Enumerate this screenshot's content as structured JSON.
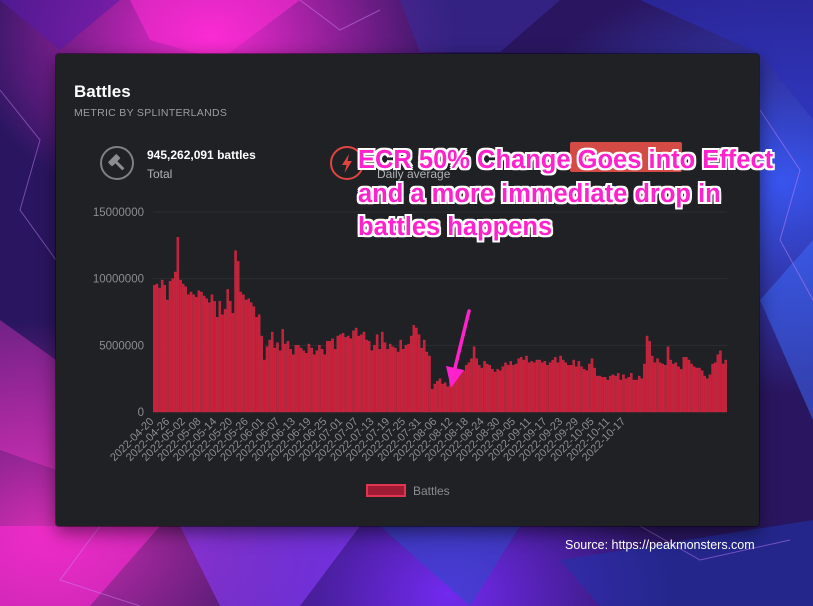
{
  "card": {
    "title": "Battles",
    "subtitle": "METRIC BY SPLINTERLANDS",
    "stats": [
      {
        "icon": "hammer-icon",
        "value": "945,262,091 battles",
        "label": "Total"
      },
      {
        "icon": "lightning-icon",
        "value": "",
        "label": "Daily average"
      }
    ]
  },
  "annotation": {
    "text": "ECR 50% Change Goes into Effect and a more immediate drop in battles happens",
    "color": "#ff22cc"
  },
  "source": "Source: https://peakmonsters.com",
  "colors": {
    "bar_fill": "#c8203a",
    "bar_stroke": "#e0344f",
    "card_bg": "#1f2124",
    "annotation": "#ff22cc"
  },
  "chart_data": {
    "type": "bar",
    "ylim": [
      0,
      15000000
    ],
    "yticks": [
      "0",
      "5000000",
      "10000000",
      "15000000"
    ],
    "xtick_labels": [
      "2022-04-20",
      "2022-04-26",
      "2022-05-02",
      "2022-05-08",
      "2022-05-14",
      "2022-05-20",
      "2022-05-26",
      "2022-06-01",
      "2022-06-07",
      "2022-06-13",
      "2022-06-19",
      "2022-06-25",
      "2022-07-01",
      "2022-07-07",
      "2022-07-13",
      "2022-07-19",
      "2022-07-25",
      "2022-07-31",
      "2022-08-06",
      "2022-08-12",
      "2022-08-18",
      "2022-08-24",
      "2022-08-30",
      "2022-09-05",
      "2022-09-11",
      "2022-09-17",
      "2022-09-23",
      "2022-09-29",
      "2022-10-05",
      "2022-10-11",
      "2022-10-17"
    ],
    "start_date": "2022-04-20",
    "series": [
      {
        "name": "Battles",
        "values": [
          9500000,
          9600000,
          9300000,
          9900000,
          9500000,
          8400000,
          9800000,
          10000000,
          10500000,
          13100000,
          9900000,
          9600000,
          9400000,
          8800000,
          9000000,
          8800000,
          8600000,
          9100000,
          9000000,
          8700000,
          8500000,
          8200000,
          8800000,
          8300000,
          7100000,
          8300000,
          7300000,
          7700000,
          9200000,
          8300000,
          7400000,
          12100000,
          11300000,
          9000000,
          8800000,
          8400000,
          8500000,
          8200000,
          7900000,
          7100000,
          7300000,
          5700000,
          3900000,
          4900000,
          5400000,
          6000000,
          4800000,
          5200000,
          4600000,
          6200000,
          5100000,
          5300000,
          4700000,
          4300000,
          5000000,
          5000000,
          4800000,
          4600000,
          4400000,
          5100000,
          4800000,
          4300000,
          4600000,
          5000000,
          4700000,
          4300000,
          5300000,
          5300000,
          5500000,
          4700000,
          5700000,
          5800000,
          5900000,
          5600000,
          5700000,
          5500000,
          6100000,
          6300000,
          5700000,
          5800000,
          6000000,
          5400000,
          5300000,
          4600000,
          5000000,
          5800000,
          4700000,
          6000000,
          5200000,
          4700000,
          5100000,
          4900000,
          4800000,
          4500000,
          5400000,
          4700000,
          5000000,
          5100000,
          5700000,
          6500000,
          6300000,
          5800000,
          4800000,
          5400000,
          4500000,
          4200000,
          1700000,
          2100000,
          2300000,
          2500000,
          2100000,
          2200000,
          1900000,
          2400000,
          2700000,
          2600000,
          2600000,
          3000000,
          3100000,
          3500000,
          3700000,
          4000000,
          4900000,
          4000000,
          3500000,
          3300000,
          3800000,
          3600000,
          3500000,
          3200000,
          3000000,
          3200000,
          3100000,
          3400000,
          3700000,
          3500000,
          3800000,
          3500000,
          3600000,
          4000000,
          4100000,
          3900000,
          4200000,
          3700000,
          3800000,
          3700000,
          3900000,
          3900000,
          3700000,
          3800000,
          3500000,
          3700000,
          3900000,
          4100000,
          3700000,
          4200000,
          3900000,
          3700000,
          3500000,
          3500000,
          3900000,
          3400000,
          3800000,
          3400000,
          3200000,
          3100000,
          3600000,
          4000000,
          3300000,
          2700000,
          2700000,
          2600000,
          2600000,
          2400000,
          2700000,
          2800000,
          2700000,
          2900000,
          2400000,
          2800000,
          2500000,
          2600000,
          2900000,
          2400000,
          2400000,
          2700000,
          2500000,
          3600000,
          5700000,
          5300000,
          4200000,
          3700000,
          4000000,
          3700000,
          3600000,
          3500000,
          4900000,
          3900000,
          3600000,
          3700000,
          3400000,
          3200000,
          4100000,
          4100000,
          3900000,
          3600000,
          3400000,
          3300000,
          3300000,
          3100000,
          2700000,
          2500000,
          2800000,
          3600000,
          3700000,
          4300000,
          4600000,
          3600000,
          3900000
        ]
      }
    ]
  }
}
